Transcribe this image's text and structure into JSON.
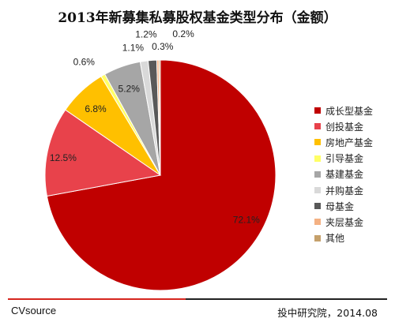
{
  "chart_data": {
    "type": "pie",
    "title": "2013年新募集私募股权基金类型分布（金额）",
    "categories": [
      "成长型基金",
      "创投基金",
      "房地产基金",
      "引导基金",
      "基建基金",
      "并购基金",
      "母基金",
      "夹层基金",
      "其他"
    ],
    "values": [
      72.1,
      12.5,
      6.8,
      0.6,
      5.2,
      1.1,
      1.2,
      0.3,
      0.2
    ],
    "labels": [
      "72.1%",
      "12.5%",
      "6.8%",
      "0.6%",
      "5.2%",
      "1.1%",
      "1.2%",
      "0.3%",
      "0.2%"
    ],
    "colors": [
      "#c00000",
      "#e8424b",
      "#ffc000",
      "#ffff66",
      "#a6a6a6",
      "#d9d9d9",
      "#595959",
      "#f4b183",
      "#c5a06b"
    ],
    "legend_position": "right"
  },
  "footer": {
    "source": "CVsource",
    "credit": "投中研究院，2014.08"
  }
}
